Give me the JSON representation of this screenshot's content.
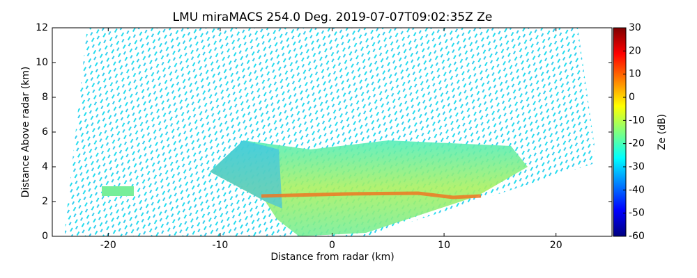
{
  "chart_data": {
    "type": "image",
    "title": "LMU miraMACS 254.0 Deg. 2019-07-07T09:02:35Z  Ze",
    "x_label": "Distance from radar (km)",
    "y_label": "Distance Above radar  (km)",
    "xlim": [
      -25,
      25
    ],
    "xticks": [
      -20,
      -10,
      0,
      10,
      20
    ],
    "ylim": [
      0,
      12
    ],
    "yticks": [
      0,
      2,
      4,
      6,
      8,
      10,
      12
    ],
    "colorbar": {
      "label": "Ze (dB)",
      "colormap": "jet",
      "lim": [
        -60,
        30
      ],
      "ticks": [
        -60,
        -50,
        -40,
        -30,
        -20,
        -10,
        0,
        10,
        20,
        30
      ]
    }
  }
}
